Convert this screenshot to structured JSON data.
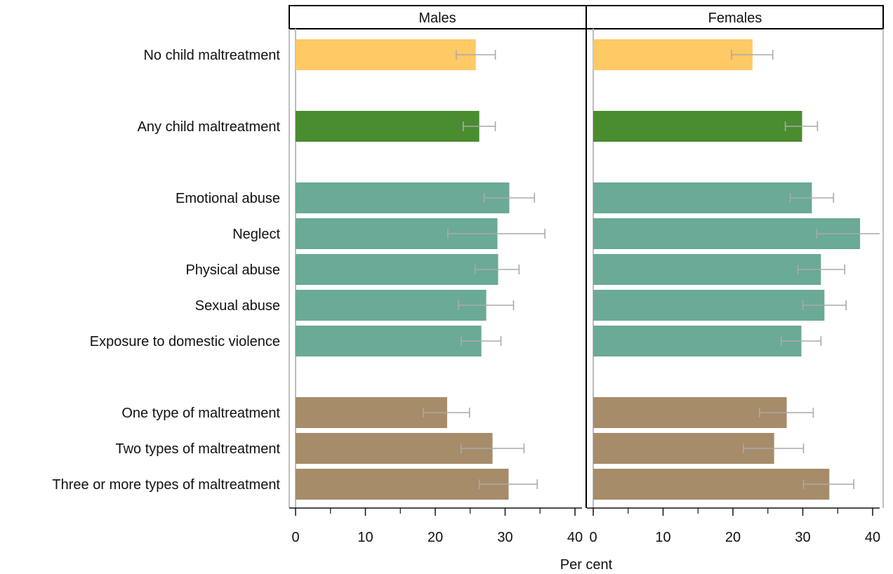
{
  "chart_data": {
    "type": "bar",
    "orientation": "horizontal",
    "xlabel": "Per cent",
    "xlim": [
      0,
      41
    ],
    "xticks": [
      0,
      10,
      20,
      30,
      40
    ],
    "xminor_ticks": [
      5,
      15,
      25,
      35
    ],
    "grid": false,
    "legend": "none",
    "panels": [
      "Males",
      "Females"
    ],
    "categories": [
      {
        "label": "No child maltreatment",
        "group": "none"
      },
      {
        "label": "Any child maltreatment",
        "group": "any"
      },
      {
        "label": "Emotional abuse",
        "group": "type"
      },
      {
        "label": "Neglect",
        "group": "type"
      },
      {
        "label": "Physical abuse",
        "group": "type"
      },
      {
        "label": "Sexual abuse",
        "group": "type"
      },
      {
        "label": "Exposure to domestic violence",
        "group": "type"
      },
      {
        "label": "One type of maltreatment",
        "group": "count"
      },
      {
        "label": "Two types of maltreatment",
        "group": "count"
      },
      {
        "label": "Three or more types of maltreatment",
        "group": "count"
      }
    ],
    "group_colors": {
      "none": "#FFC966",
      "any": "#4A8C30",
      "type": "#6AAA96",
      "count": "#A68C69"
    },
    "error_bar_color": "#AAAAAA",
    "series": [
      {
        "name": "Males",
        "values": [
          25.8,
          26.3,
          30.6,
          28.9,
          29.0,
          27.3,
          26.6,
          21.7,
          28.2,
          30.5
        ],
        "ci_low": [
          23.0,
          24.0,
          27.0,
          21.8,
          25.7,
          23.3,
          23.7,
          18.3,
          23.7,
          26.3
        ],
        "ci_high": [
          28.6,
          28.6,
          34.2,
          35.7,
          32.0,
          31.2,
          29.4,
          24.9,
          32.7,
          34.6
        ]
      },
      {
        "name": "Females",
        "values": [
          22.8,
          29.9,
          31.3,
          38.2,
          32.6,
          33.1,
          29.8,
          27.7,
          25.9,
          33.8
        ],
        "ci_low": [
          19.8,
          27.5,
          28.2,
          32.0,
          29.3,
          30.0,
          26.9,
          23.8,
          21.5,
          30.1
        ],
        "ci_high": [
          25.7,
          32.1,
          34.4,
          41.5,
          36.0,
          36.2,
          32.6,
          31.5,
          30.1,
          37.3
        ]
      }
    ]
  }
}
